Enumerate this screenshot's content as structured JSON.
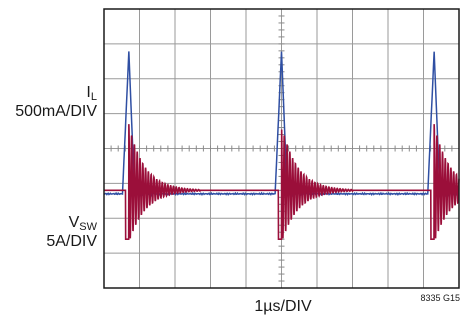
{
  "chart_data": {
    "type": "line",
    "title": "",
    "xlabel": "1µs/DIV",
    "figure_id": "8335 G15",
    "grid": true,
    "divisions": {
      "x": 10,
      "y": 8
    },
    "time_per_div_us": 1,
    "period_us": 4.3,
    "series": [
      {
        "name": "IL",
        "label_main": "I",
        "label_sub": "L",
        "scale": "500mA/DIV",
        "color": "#2f4fa3",
        "baseline_div": 5.3,
        "peak_div": 1.22,
        "peaks_at_div": [
          0.7,
          5.0,
          9.3
        ]
      },
      {
        "name": "VSW",
        "label_main": "V",
        "label_sub": "SW",
        "scale": "5A/DIV",
        "color": "#9b0f3a",
        "high_div": 1.2,
        "settle_div": 2.0,
        "low_div": 1.4,
        "edges_at_div": [
          0.7,
          5.0,
          9.3
        ]
      }
    ]
  }
}
